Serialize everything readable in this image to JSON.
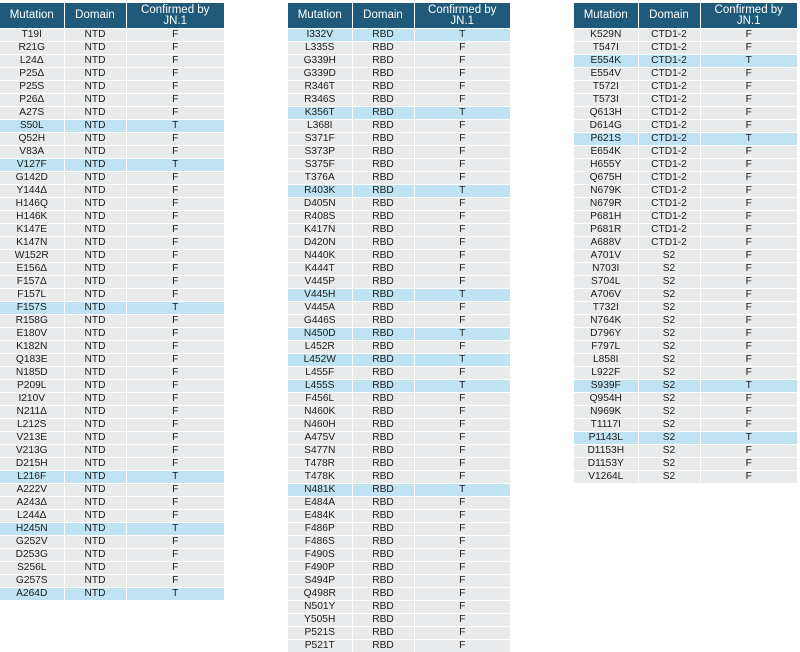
{
  "headers": {
    "mutation": "Mutation",
    "domain": "Domain",
    "confirmed": "Confirmed by JN.1"
  },
  "tables": [
    {
      "rows": [
        [
          "T19I",
          "NTD",
          "F"
        ],
        [
          "R21G",
          "NTD",
          "F"
        ],
        [
          "L24Δ",
          "NTD",
          "F"
        ],
        [
          "P25Δ",
          "NTD",
          "F"
        ],
        [
          "P25S",
          "NTD",
          "F"
        ],
        [
          "P26Δ",
          "NTD",
          "F"
        ],
        [
          "A27S",
          "NTD",
          "F"
        ],
        [
          "S50L",
          "NTD",
          "T"
        ],
        [
          "Q52H",
          "NTD",
          "F"
        ],
        [
          "V83A",
          "NTD",
          "F"
        ],
        [
          "V127F",
          "NTD",
          "T"
        ],
        [
          "G142D",
          "NTD",
          "F"
        ],
        [
          "Y144Δ",
          "NTD",
          "F"
        ],
        [
          "H146Q",
          "NTD",
          "F"
        ],
        [
          "H146K",
          "NTD",
          "F"
        ],
        [
          "K147E",
          "NTD",
          "F"
        ],
        [
          "K147N",
          "NTD",
          "F"
        ],
        [
          "W152R",
          "NTD",
          "F"
        ],
        [
          "E156Δ",
          "NTD",
          "F"
        ],
        [
          "F157Δ",
          "NTD",
          "F"
        ],
        [
          "F157L",
          "NTD",
          "F"
        ],
        [
          "F157S",
          "NTD",
          "T"
        ],
        [
          "R158G",
          "NTD",
          "F"
        ],
        [
          "E180V",
          "NTD",
          "F"
        ],
        [
          "K182N",
          "NTD",
          "F"
        ],
        [
          "Q183E",
          "NTD",
          "F"
        ],
        [
          "N185D",
          "NTD",
          "F"
        ],
        [
          "P209L",
          "NTD",
          "F"
        ],
        [
          "I210V",
          "NTD",
          "F"
        ],
        [
          "N211Δ",
          "NTD",
          "F"
        ],
        [
          "L212S",
          "NTD",
          "F"
        ],
        [
          "V213E",
          "NTD",
          "F"
        ],
        [
          "V213G",
          "NTD",
          "F"
        ],
        [
          "D215H",
          "NTD",
          "F"
        ],
        [
          "L216F",
          "NTD",
          "T"
        ],
        [
          "A222V",
          "NTD",
          "F"
        ],
        [
          "A243Δ",
          "NTD",
          "F"
        ],
        [
          "L244Δ",
          "NTD",
          "F"
        ],
        [
          "H245N",
          "NTD",
          "T"
        ],
        [
          "G252V",
          "NTD",
          "F"
        ],
        [
          "D253G",
          "NTD",
          "F"
        ],
        [
          "S256L",
          "NTD",
          "F"
        ],
        [
          "G257S",
          "NTD",
          "F"
        ],
        [
          "A264D",
          "NTD",
          "T"
        ]
      ]
    },
    {
      "rows": [
        [
          "I332V",
          "RBD",
          "T"
        ],
        [
          "L335S",
          "RBD",
          "F"
        ],
        [
          "G339H",
          "RBD",
          "F"
        ],
        [
          "G339D",
          "RBD",
          "F"
        ],
        [
          "R346T",
          "RBD",
          "F"
        ],
        [
          "R346S",
          "RBD",
          "F"
        ],
        [
          "K356T",
          "RBD",
          "T"
        ],
        [
          "L368I",
          "RBD",
          "F"
        ],
        [
          "S371F",
          "RBD",
          "F"
        ],
        [
          "S373P",
          "RBD",
          "F"
        ],
        [
          "S375F",
          "RBD",
          "F"
        ],
        [
          "T376A",
          "RBD",
          "F"
        ],
        [
          "R403K",
          "RBD",
          "T"
        ],
        [
          "D405N",
          "RBD",
          "F"
        ],
        [
          "R408S",
          "RBD",
          "F"
        ],
        [
          "K417N",
          "RBD",
          "F"
        ],
        [
          "D420N",
          "RBD",
          "F"
        ],
        [
          "N440K",
          "RBD",
          "F"
        ],
        [
          "K444T",
          "RBD",
          "F"
        ],
        [
          "V445P",
          "RBD",
          "F"
        ],
        [
          "V445H",
          "RBD",
          "T"
        ],
        [
          "V445A",
          "RBD",
          "F"
        ],
        [
          "G446S",
          "RBD",
          "F"
        ],
        [
          "N450D",
          "RBD",
          "T"
        ],
        [
          "L452R",
          "RBD",
          "F"
        ],
        [
          "L452W",
          "RBD",
          "T"
        ],
        [
          "L455F",
          "RBD",
          "F"
        ],
        [
          "L455S",
          "RBD",
          "T"
        ],
        [
          "F456L",
          "RBD",
          "F"
        ],
        [
          "N460K",
          "RBD",
          "F"
        ],
        [
          "N460H",
          "RBD",
          "F"
        ],
        [
          "A475V",
          "RBD",
          "F"
        ],
        [
          "S477N",
          "RBD",
          "F"
        ],
        [
          "T478R",
          "RBD",
          "F"
        ],
        [
          "T478K",
          "RBD",
          "F"
        ],
        [
          "N481K",
          "RBD",
          "T"
        ],
        [
          "E484A",
          "RBD",
          "F"
        ],
        [
          "E484K",
          "RBD",
          "F"
        ],
        [
          "F486P",
          "RBD",
          "F"
        ],
        [
          "F486S",
          "RBD",
          "F"
        ],
        [
          "F490S",
          "RBD",
          "F"
        ],
        [
          "F490P",
          "RBD",
          "F"
        ],
        [
          "S494P",
          "RBD",
          "F"
        ],
        [
          "Q498R",
          "RBD",
          "F"
        ],
        [
          "N501Y",
          "RBD",
          "F"
        ],
        [
          "Y505H",
          "RBD",
          "F"
        ],
        [
          "P521S",
          "RBD",
          "F"
        ],
        [
          "P521T",
          "RBD",
          "F"
        ]
      ]
    },
    {
      "rows": [
        [
          "K529N",
          "CTD1-2",
          "F"
        ],
        [
          "T547I",
          "CTD1-2",
          "F"
        ],
        [
          "E554K",
          "CTD1-2",
          "T"
        ],
        [
          "E554V",
          "CTD1-2",
          "F"
        ],
        [
          "T572I",
          "CTD1-2",
          "F"
        ],
        [
          "T573I",
          "CTD1-2",
          "F"
        ],
        [
          "Q613H",
          "CTD1-2",
          "F"
        ],
        [
          "D614G",
          "CTD1-2",
          "F"
        ],
        [
          "P621S",
          "CTD1-2",
          "T"
        ],
        [
          "E654K",
          "CTD1-2",
          "F"
        ],
        [
          "H655Y",
          "CTD1-2",
          "F"
        ],
        [
          "Q675H",
          "CTD1-2",
          "F"
        ],
        [
          "N679K",
          "CTD1-2",
          "F"
        ],
        [
          "N679R",
          "CTD1-2",
          "F"
        ],
        [
          "P681H",
          "CTD1-2",
          "F"
        ],
        [
          "P681R",
          "CTD1-2",
          "F"
        ],
        [
          "A688V",
          "CTD1-2",
          "F"
        ],
        [
          "A701V",
          "S2",
          "F"
        ],
        [
          "N703I",
          "S2",
          "F"
        ],
        [
          "S704L",
          "S2",
          "F"
        ],
        [
          "A706V",
          "S2",
          "F"
        ],
        [
          "T732I",
          "S2",
          "F"
        ],
        [
          "N764K",
          "S2",
          "F"
        ],
        [
          "D796Y",
          "S2",
          "F"
        ],
        [
          "F797L",
          "S2",
          "F"
        ],
        [
          "L858I",
          "S2",
          "F"
        ],
        [
          "L922F",
          "S2",
          "F"
        ],
        [
          "S939F",
          "S2",
          "T"
        ],
        [
          "Q954H",
          "S2",
          "F"
        ],
        [
          "N969K",
          "S2",
          "F"
        ],
        [
          "T1117I",
          "S2",
          "F"
        ],
        [
          "P1143L",
          "S2",
          "T"
        ],
        [
          "D1153H",
          "S2",
          "F"
        ],
        [
          "D1153Y",
          "S2",
          "F"
        ],
        [
          "V1264L",
          "S2",
          "F"
        ]
      ]
    }
  ]
}
